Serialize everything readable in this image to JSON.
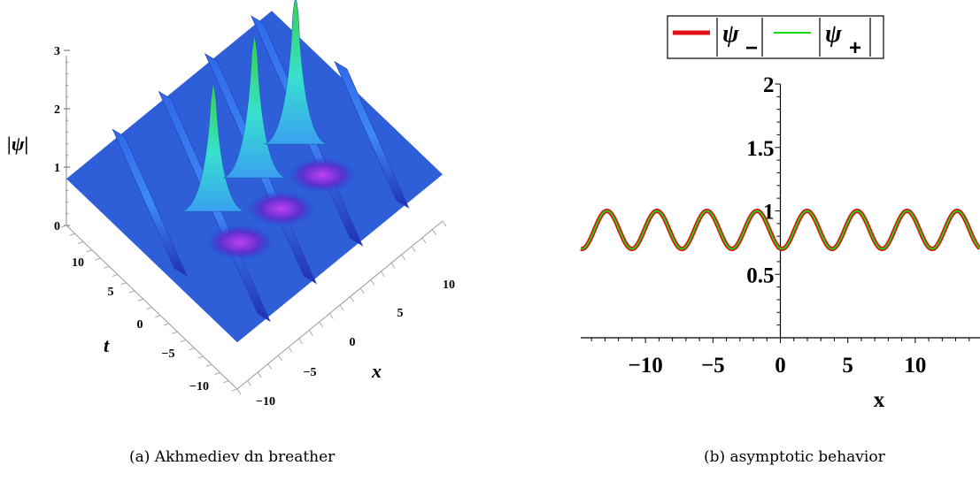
{
  "captions": {
    "a": "(a) Akhmediev dn breather",
    "b": "(b) asymptotic behavior"
  },
  "colors": {
    "surface_base": "#2f6ff0",
    "surface_dark": "#2a17a8",
    "surface_peak": "#2fd35a",
    "trough": "#b03cf0",
    "series_minus": "#e01010",
    "series_plus": "#10e010"
  },
  "chart_data": [
    {
      "type": "surface3d",
      "zlabel": "|ψ|",
      "xlabel": "x",
      "ylabel": "t",
      "xlim": [
        -10,
        10
      ],
      "ylim": [
        -10,
        10
      ],
      "zlim": [
        0,
        3
      ],
      "ticks_x": [
        "−10",
        "−5",
        "0",
        "5",
        "10"
      ],
      "ticks_t": [
        "−10",
        "−5",
        "0",
        "5",
        "10"
      ],
      "ticks_z": [
        "0",
        "1",
        "2",
        "3"
      ],
      "peaks": [
        {
          "x": -4,
          "t": 0,
          "z": 2.1
        },
        {
          "x": 0,
          "t": 0,
          "z": 2.35
        },
        {
          "x": 4,
          "t": 0,
          "z": 2.45
        }
      ],
      "background_min": 0.7,
      "background_max": 1.0
    },
    {
      "type": "line",
      "xlabel": "x",
      "xlim": [
        -14.8,
        14.8
      ],
      "ylim": [
        0,
        2
      ],
      "x_ticks": [
        "−10",
        "−5",
        "0",
        "5",
        "10"
      ],
      "x_tick_values": [
        -10,
        -5,
        0,
        5,
        10
      ],
      "y_ticks": [
        "0.5",
        "1",
        "1.5",
        "2"
      ],
      "y_tick_values": [
        0.5,
        1,
        1.5,
        2
      ],
      "legend_placement": "top-center",
      "series": [
        {
          "name_main": "ψ",
          "name_sub": "−",
          "color": "#e01010",
          "min": 0.7,
          "max": 1.0,
          "period": 3.71
        },
        {
          "name_main": "ψ",
          "name_sub": "+",
          "color": "#10e010",
          "min": 0.7,
          "max": 1.0,
          "period": 3.71
        }
      ]
    }
  ]
}
